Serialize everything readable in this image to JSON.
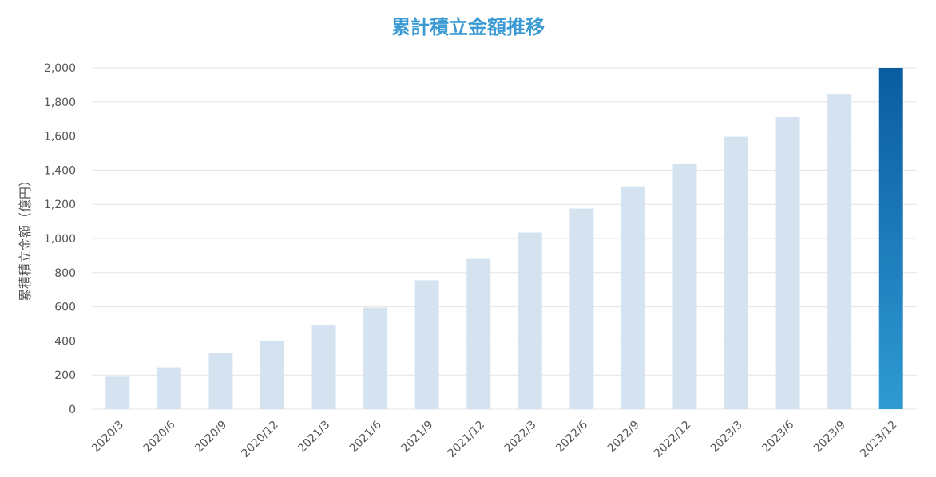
{
  "chart_data": {
    "type": "bar",
    "title": "累計積立金額推移",
    "xlabel": "",
    "ylabel": "累積積立金額（億円）",
    "categories": [
      "2020/3",
      "2020/6",
      "2020/9",
      "2020/12",
      "2021/3",
      "2021/6",
      "2021/9",
      "2021/12",
      "2022/3",
      "2022/6",
      "2022/9",
      "2022/12",
      "2023/3",
      "2023/6",
      "2023/9",
      "2023/12"
    ],
    "values": [
      190,
      245,
      330,
      400,
      490,
      595,
      755,
      880,
      1035,
      1175,
      1305,
      1440,
      1595,
      1710,
      1845,
      2000
    ],
    "ylim": [
      0,
      2000
    ],
    "yticks": [
      0,
      200,
      400,
      600,
      800,
      1000,
      1200,
      1400,
      1600,
      1800,
      2000
    ],
    "ytick_labels": [
      "0",
      "200",
      "400",
      "600",
      "800",
      "1,000",
      "1,200",
      "1,400",
      "1,600",
      "1,800",
      "2,000"
    ],
    "grid": true,
    "highlight_index": 15,
    "colors": {
      "title": "#3a9ad3",
      "bar": "#d5e3f1",
      "highlight_top": "#0a5ca0",
      "highlight_bottom": "#2f9ad2",
      "grid": "#e4e4e4",
      "axis_text": "#555555"
    }
  }
}
